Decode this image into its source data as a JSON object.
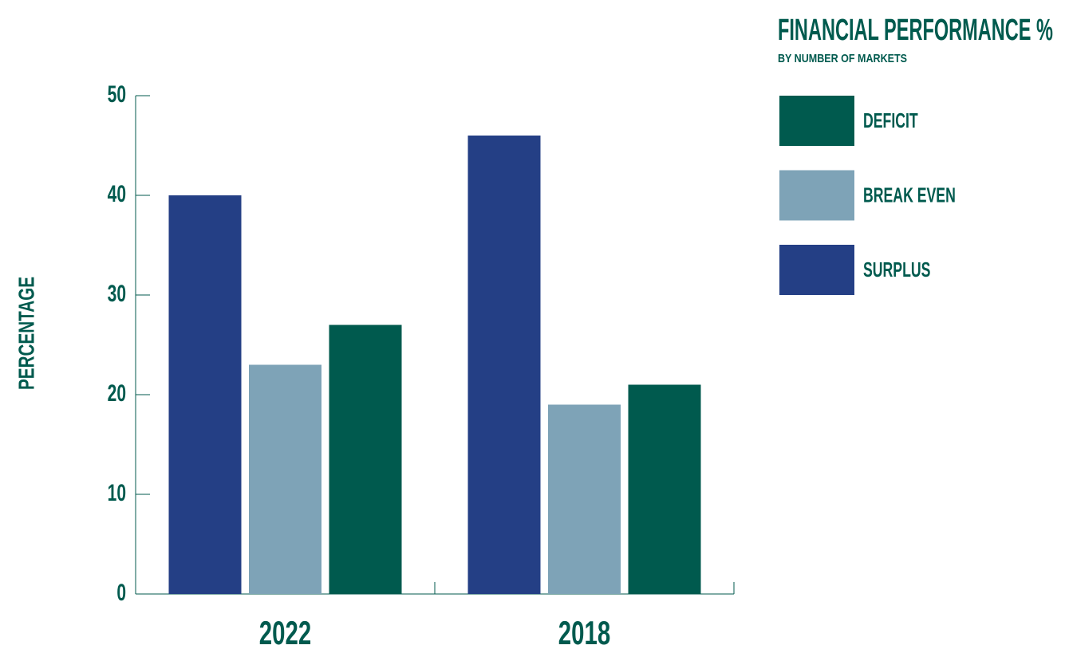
{
  "chart_data": {
    "type": "bar",
    "title": "FINANCIAL PERFORMANCE %",
    "subtitle": "BY NUMBER OF MARKETS",
    "y_label": "PERCENTAGE",
    "categories": [
      "2022",
      "2018"
    ],
    "series": [
      {
        "name": "SURPLUS",
        "color": "#243f85",
        "values": [
          40,
          46
        ]
      },
      {
        "name": "BREAK EVEN",
        "color": "#7ea3b7",
        "values": [
          23,
          19
        ]
      },
      {
        "name": "DEFICIT",
        "color": "#005a4e",
        "values": [
          27,
          21
        ]
      }
    ],
    "ylim": [
      0,
      50
    ],
    "yticks": [
      0,
      10,
      20,
      30,
      40,
      50
    ]
  }
}
